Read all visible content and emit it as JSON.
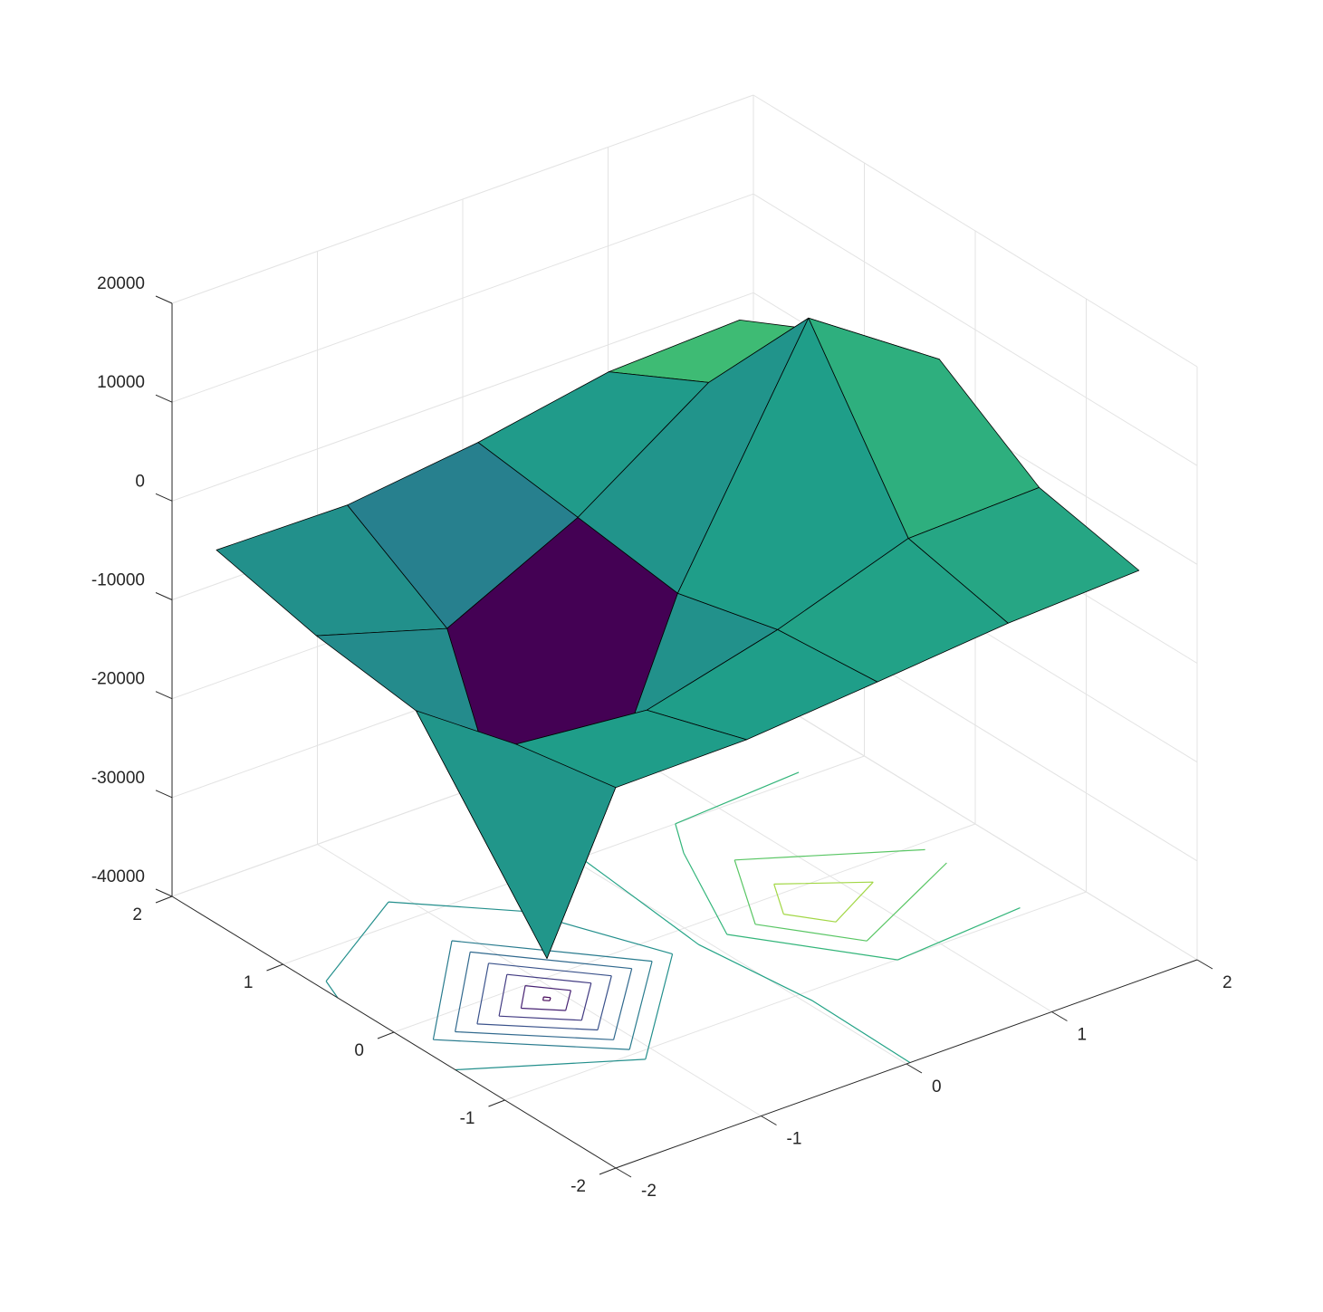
{
  "chart_data": {
    "type": "surfc",
    "x": [
      -2,
      -1.1,
      -0.2,
      0.7,
      1.6
    ],
    "y": [
      -2,
      -1.1,
      -0.2,
      0.7,
      1.6
    ],
    "z": [
      [
        -1500,
        -1400,
        -300,
        900,
        1500
      ],
      [
        -3300,
        -4600,
        -1200,
        3300,
        3700
      ],
      [
        -6100,
        -35900,
        -3700,
        19400,
        10500
      ],
      [
        -4700,
        -8700,
        -2200,
        6700,
        7000
      ],
      [
        -2200,
        -2400,
        -800,
        1600,
        2100
      ]
    ],
    "contour_levels": [
      -35000,
      -30000,
      -25000,
      -20000,
      -15000,
      -10000,
      -5000,
      0,
      5000,
      10000,
      15000
    ],
    "colormap": "viridis",
    "edge_color": "#000000",
    "grid": true,
    "xlim": [
      -2,
      2
    ],
    "xticks": [
      -2,
      -1,
      0,
      1,
      2
    ],
    "ylim": [
      -2,
      2
    ],
    "yticks": [
      -2,
      -1,
      0,
      1,
      2
    ],
    "zlim": [
      -40000,
      20000
    ],
    "zticks": [
      -40000,
      -30000,
      -20000,
      -10000,
      0,
      10000,
      20000
    ]
  }
}
